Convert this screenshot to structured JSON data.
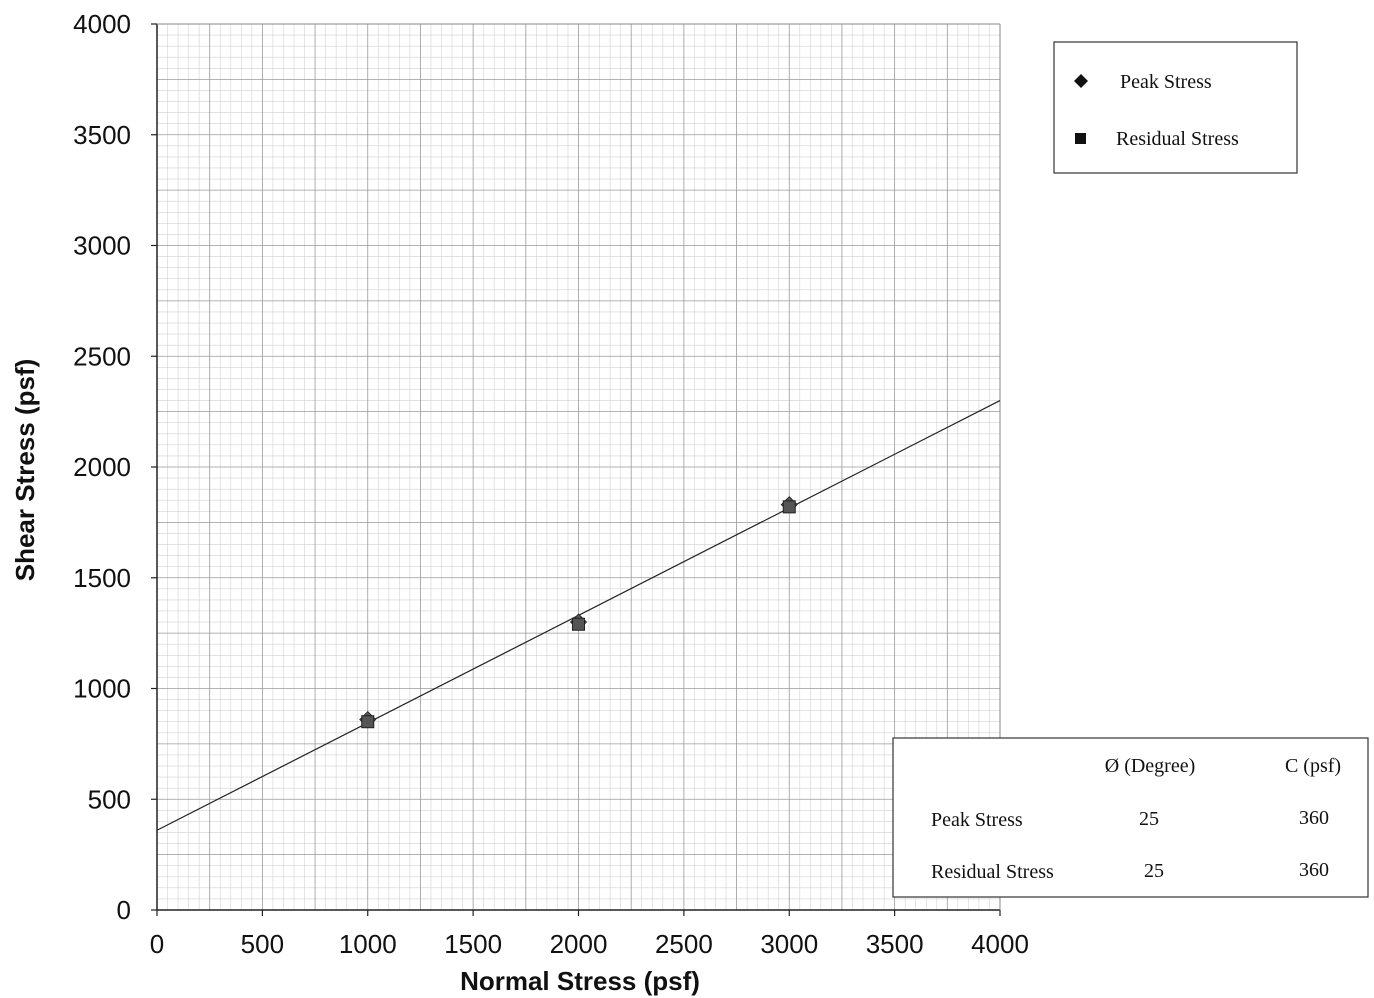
{
  "chart_data": {
    "type": "scatter",
    "title": "",
    "xlabel": "Normal Stress (psf)",
    "ylabel": "Shear Stress (psf)",
    "xlim": [
      0,
      4000
    ],
    "ylim": [
      0,
      4000
    ],
    "x_ticks": [
      "0",
      "500",
      "1000",
      "1500",
      "2000",
      "2500",
      "3000",
      "3500",
      "4000"
    ],
    "y_ticks": [
      "0",
      "500",
      "1000",
      "1500",
      "2000",
      "2500",
      "3000",
      "3500",
      "4000"
    ],
    "grid": true,
    "legend_position": "top-right",
    "series": [
      {
        "name": "Peak Stress",
        "marker": "diamond",
        "color": "#555555",
        "points": [
          {
            "x": 1000,
            "y": 860
          },
          {
            "x": 2000,
            "y": 1300
          },
          {
            "x": 3000,
            "y": 1830
          }
        ]
      },
      {
        "name": "Residual Stress",
        "marker": "square",
        "color": "#555555",
        "points": [
          {
            "x": 1000,
            "y": 850
          },
          {
            "x": 2000,
            "y": 1290
          },
          {
            "x": 3000,
            "y": 1820
          }
        ]
      }
    ],
    "trendline": {
      "x": [
        0,
        4000
      ],
      "y": [
        360,
        2300
      ]
    },
    "summary_table": {
      "headers": [
        "",
        "Ø (Degree)",
        "C (psf)"
      ],
      "rows": [
        [
          "Peak Stress",
          "25",
          "360"
        ],
        [
          "Residual Stress",
          "25",
          "360"
        ]
      ]
    }
  }
}
